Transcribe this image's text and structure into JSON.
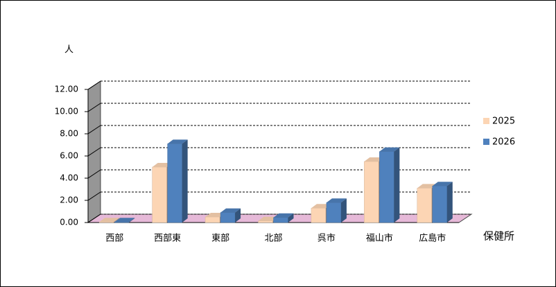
{
  "chart_data": {
    "type": "bar3d",
    "y_label": "人",
    "x_label": "保健所",
    "categories": [
      "西部",
      "西部東",
      "東部",
      "北部",
      "呉市",
      "福山市",
      "広島市"
    ],
    "series": [
      {
        "name": "2025",
        "color": "#fcd5b4",
        "values": [
          0.05,
          5.0,
          0.5,
          0.15,
          1.3,
          5.5,
          3.1
        ]
      },
      {
        "name": "2026",
        "color": "#4f81bd",
        "values": [
          0.05,
          7.1,
          0.9,
          0.45,
          1.8,
          6.4,
          3.3
        ]
      }
    ],
    "ylim": [
      0,
      12
    ],
    "yticks": [
      {
        "value": 0,
        "label": "0.00"
      },
      {
        "value": 2,
        "label": "2.00"
      },
      {
        "value": 4,
        "label": "4.00"
      },
      {
        "value": 6,
        "label": "6.00"
      },
      {
        "value": 8,
        "label": "8.00"
      },
      {
        "value": 10,
        "label": "10.00"
      },
      {
        "value": 12,
        "label": "12.00"
      }
    ],
    "grid": true,
    "legend": "right"
  }
}
